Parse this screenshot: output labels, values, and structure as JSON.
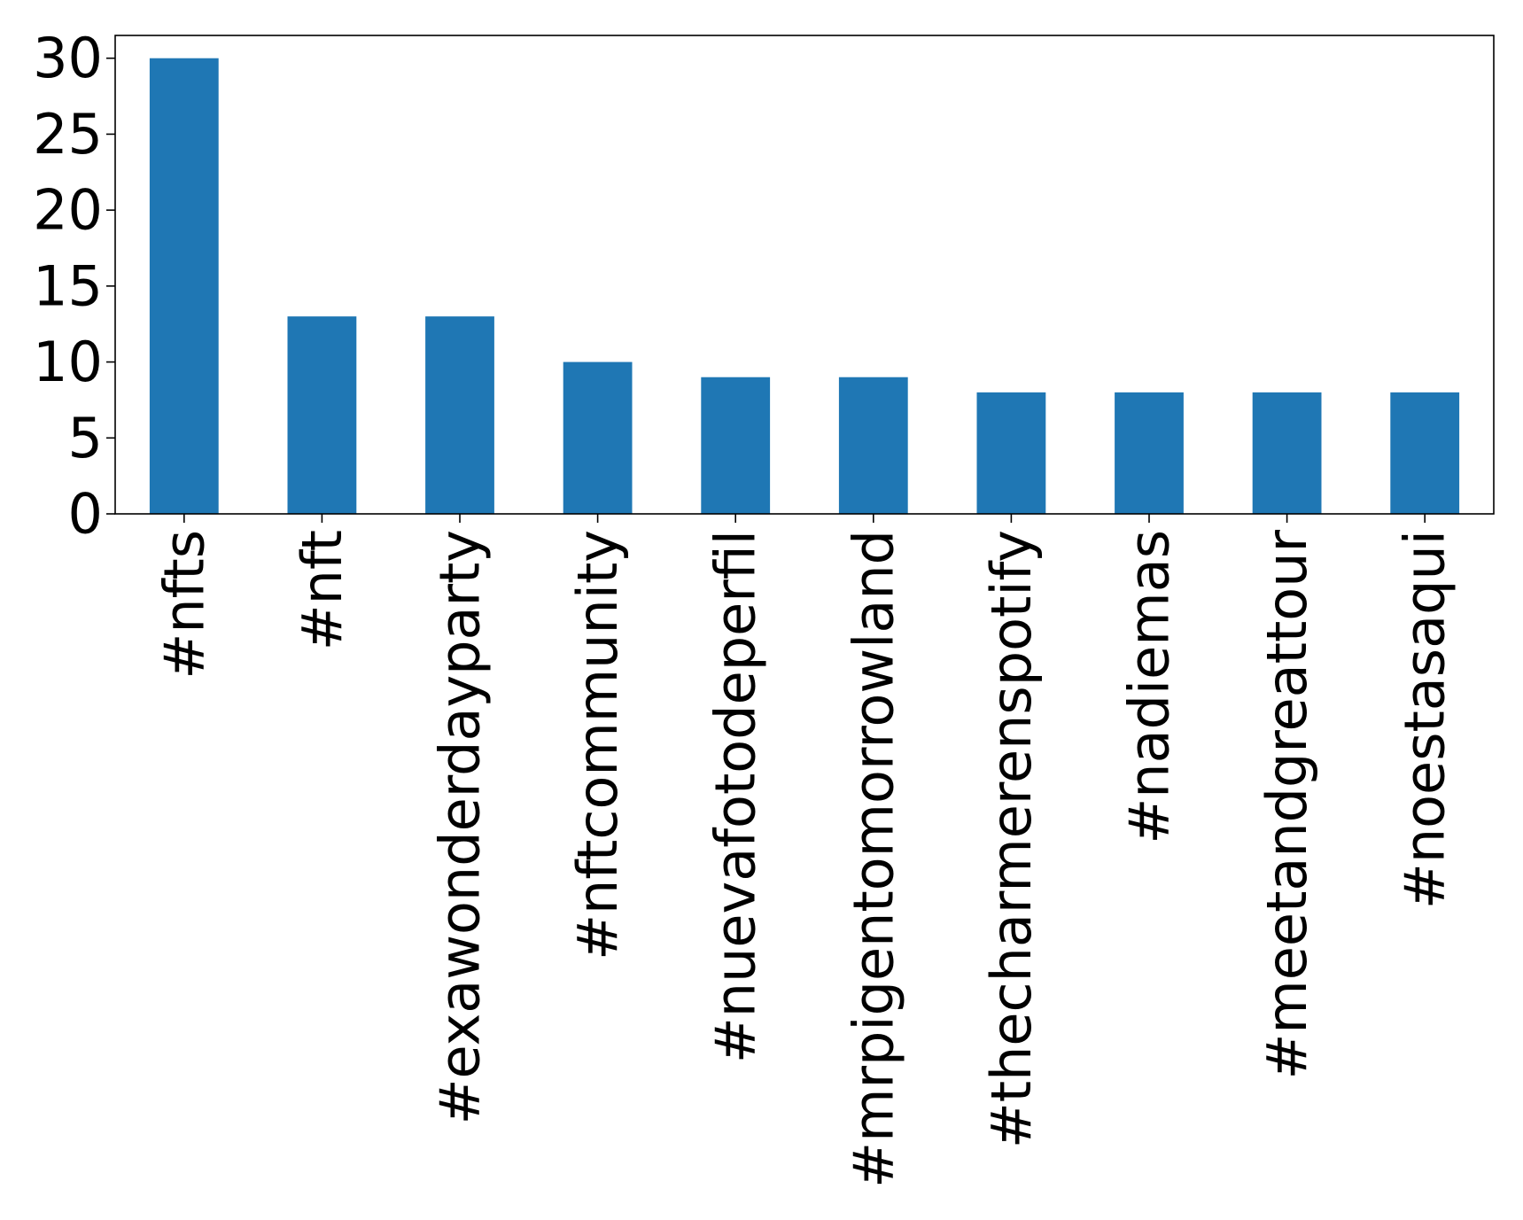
{
  "chart_data": {
    "type": "bar",
    "categories": [
      "#nfts",
      "#nft",
      "#exawonderdayparty",
      "#nftcommunity",
      "#nuevafotodeperfil",
      "#mrpigentomorrowland",
      "#thecharmerenspotify",
      "#nadiemas",
      "#meetandgreattour",
      "#noestasaqui"
    ],
    "values": [
      30,
      13,
      13,
      10,
      9,
      9,
      8,
      8,
      8,
      8
    ],
    "title": "",
    "xlabel": "",
    "ylabel": "",
    "ylim": [
      0,
      31.5
    ],
    "yticks": [
      0,
      5,
      10,
      15,
      20,
      25,
      30
    ],
    "bar_color": "#1f77b4",
    "grid": false,
    "legend": false
  }
}
